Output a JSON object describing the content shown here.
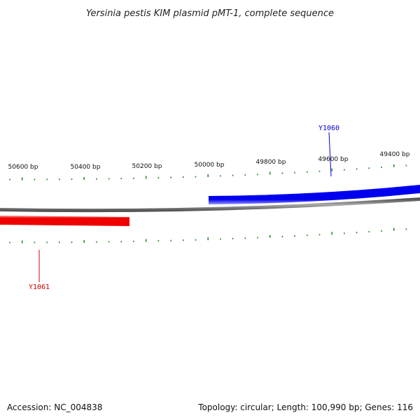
{
  "title": "Yersinia pestis KIM plasmid pMT-1, complete sequence",
  "footer": {
    "accession": "Accession: NC_004838",
    "summary": "Topology: circular; Length: 100,990 bp; Genes: 116"
  },
  "colors": {
    "backbone": "#777777",
    "tick": "#2a8a2a",
    "forward_gene": "#0000ee",
    "reverse_gene": "#ee0000"
  },
  "scale_labels": [
    "50600 bp",
    "50400 bp",
    "50200 bp",
    "50000 bp",
    "49800 bp",
    "49600 bp",
    "49400 bp"
  ],
  "genes": [
    {
      "label": "Y1060",
      "strand": "forward",
      "color": "#0000cc"
    },
    {
      "label": "Y1061",
      "strand": "reverse",
      "color": "#cc0000"
    }
  ]
}
